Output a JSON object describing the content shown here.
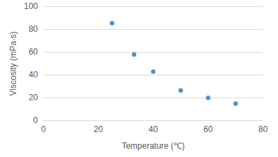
{
  "chart_data": {
    "type": "scatter",
    "x_label": "Temperature (℃)",
    "y_label": "Viscosity (mPa·s)",
    "x": [
      25,
      33,
      40,
      50,
      60,
      70
    ],
    "values": [
      85.5,
      58,
      43,
      26.5,
      20,
      15
    ],
    "color": "#4a90d0",
    "marker": "circle",
    "xlim": [
      0,
      80
    ],
    "xticks": [
      0,
      20,
      40,
      60,
      80
    ],
    "ylim": [
      0,
      100
    ],
    "yticks": [
      0,
      20,
      40,
      60,
      80,
      100
    ],
    "grid": true
  }
}
